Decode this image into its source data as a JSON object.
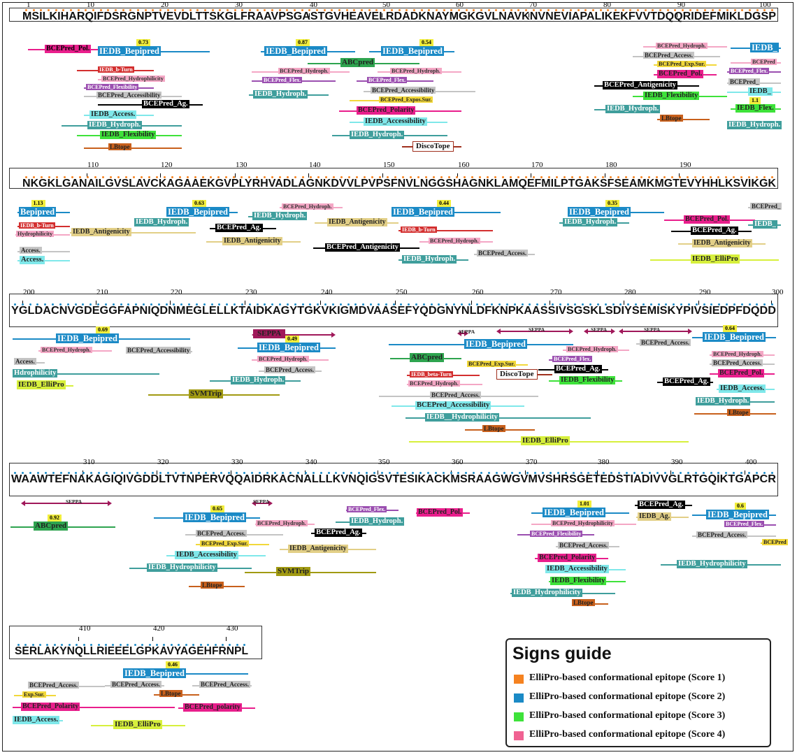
{
  "colors": {
    "score1": "#f58220",
    "score2": "#1b8ac6",
    "score3": "#3ee23a",
    "score4": "#f06292",
    "tool_bepipred": "#1b8ac6",
    "tool_magenta": "#e91e8c",
    "tool_teal": "#3f9e9c",
    "tool_cyan": "#7fe8ea",
    "tool_purple": "#9b4fb0",
    "tool_pink": "#f4a7c5",
    "tool_green": "#2ea44f",
    "tool_lime": "#d7f03c",
    "tool_orange": "#c8601c",
    "tool_yellow": "#f2d83a",
    "tool_black": "#000000",
    "tool_gray": "#c4c4c4",
    "tool_olive": "#a19a12",
    "tool_red": "#d32f2f",
    "tool_sand": "#e2cf87",
    "tool_seppa": "#a0185a"
  },
  "rows": [
    {
      "sequence": "MSILKIHARQIFDSRGNPTVEVDLTTSKGLFRAAVPSGASTGVHEAVELRDADKNAYMGKGVLNAVKNVNEVIAPALIKEKFVVTDQQRIDEFMIKLDGSP",
      "ticks": [
        "1",
        "10",
        "20",
        "30",
        "40",
        "50",
        "60",
        "70",
        "80",
        "90",
        "100"
      ],
      "dot_color": "#f58220",
      "annotations": [
        {
          "text": "BCEPred_Pol.",
          "tool": "magenta",
          "fg": "#000"
        },
        {
          "text": "IEDB_Bepipred",
          "tool": "bepipred",
          "fg": "#fff",
          "score": "0.73"
        },
        {
          "text": "IEDB_b-Turn",
          "tool": "red",
          "fg": "#fff"
        },
        {
          "text": "BCEPred_Hydrophilicity",
          "tool": "pink",
          "fg": "#333"
        },
        {
          "text": "BCEPred_Flexibility",
          "tool": "purple",
          "fg": "#fff"
        },
        {
          "text": "BCEPred_Accessibility",
          "tool": "gray",
          "fg": "#222"
        },
        {
          "text": "BCEPred_Ag.",
          "tool": "black",
          "fg": "#fff"
        },
        {
          "text": "IEDB_Access.",
          "tool": "cyan",
          "fg": "#222"
        },
        {
          "text": "IEDB_Hydroph.",
          "tool": "teal",
          "fg": "#fff"
        },
        {
          "text": "IEDB_Flexibility",
          "tool": "green3",
          "fg": "#222"
        },
        {
          "text": "LBtope",
          "tool": "orange",
          "fg": "#222"
        },
        {
          "text": "IEDB_Bepipred",
          "tool": "bepipred",
          "fg": "#fff",
          "score": "0.87"
        },
        {
          "text": "BCEPred_Hydroph.",
          "tool": "pink",
          "fg": "#333"
        },
        {
          "text": "BCEPred_Flex.",
          "tool": "purple",
          "fg": "#fff"
        },
        {
          "text": "IEDB_Hydroph.",
          "tool": "teal",
          "fg": "#fff"
        },
        {
          "text": "ABCpred",
          "tool": "green",
          "fg": "#222"
        },
        {
          "text": "IEDB_Bepipred",
          "tool": "bepipred",
          "fg": "#fff",
          "score": "0.54"
        },
        {
          "text": "BCEPred_Hydroph.",
          "tool": "pink",
          "fg": "#333"
        },
        {
          "text": "BCEPred_Flex.",
          "tool": "purple",
          "fg": "#fff"
        },
        {
          "text": "BCEPred_Accessibility",
          "tool": "gray",
          "fg": "#222"
        },
        {
          "text": "BCEPred_Expos.Sur.",
          "tool": "yellow",
          "fg": "#222"
        },
        {
          "text": "BCEPred_Polarity",
          "tool": "magenta",
          "fg": "#222"
        },
        {
          "text": "IEDB_Accessibility",
          "tool": "cyan",
          "fg": "#222"
        },
        {
          "text": "IEDB_Hydroph.",
          "tool": "teal",
          "fg": "#fff"
        },
        {
          "text": "DiscoTope",
          "tool": "disco",
          "fg": "#111"
        },
        {
          "text": "BCEPred_Hydroph.",
          "tool": "pink",
          "fg": "#333"
        },
        {
          "text": "BCEPred_Access.",
          "tool": "gray",
          "fg": "#222"
        },
        {
          "text": "BCEPred_Exp.Sur.",
          "tool": "yellow",
          "fg": "#222"
        },
        {
          "text": "BCEPred_Pol.",
          "tool": "magenta",
          "fg": "#222"
        },
        {
          "text": "BCEPred_Antigenicity",
          "tool": "black",
          "fg": "#fff"
        },
        {
          "text": "IEDB_Flexibility",
          "tool": "green3",
          "fg": "#222"
        },
        {
          "text": "IEDB_Hydroph.",
          "tool": "teal",
          "fg": "#fff"
        },
        {
          "text": "LBtope",
          "tool": "orange",
          "fg": "#222"
        },
        {
          "text": "IEDB_",
          "tool": "bepipred",
          "fg": "#fff"
        },
        {
          "text": "BCEPred",
          "tool": "pink",
          "fg": "#333"
        },
        {
          "text": "BCEPred_Flex.",
          "tool": "purple",
          "fg": "#fff"
        },
        {
          "text": "BCEPred_",
          "tool": "gray",
          "fg": "#222"
        },
        {
          "text": "IEDB_",
          "tool": "cyan",
          "fg": "#222"
        },
        {
          "text": "IEDB_Flex.",
          "tool": "green3",
          "fg": "#222",
          "score": "1.1"
        },
        {
          "text": "IEDB_Hydroph.",
          "tool": "teal",
          "fg": "#fff"
        }
      ]
    },
    {
      "sequence": "NKGKLGANAILGVSLAVCKAGAAEKGVPLYRHVADLAGNKDVVLPVPSFNVLNGGSHAGNKLAMQEFMILPTGAKSFSEAMKMGTEVYHHLKSVIKGK",
      "ticks": [
        "110",
        "120",
        "130",
        "140",
        "150",
        "160",
        "170",
        "180",
        "190"
      ],
      "dot_color": "#f58220",
      "annotations": [
        {
          "text": "Bepipred",
          "tool": "bepipred",
          "fg": "#fff",
          "score": "1.13"
        },
        {
          "text": "IEDB_b-Turn",
          "tool": "red",
          "fg": "#fff"
        },
        {
          "text": "Hydrophilicity",
          "tool": "pink",
          "fg": "#333"
        },
        {
          "text": "Access.",
          "tool": "gray",
          "fg": "#222"
        },
        {
          "text": "Access.",
          "tool": "cyan",
          "fg": "#222"
        },
        {
          "text": "IEDB_Antigenicity",
          "tool": "sand",
          "fg": "#222"
        },
        {
          "text": "IEDB_Hydroph.",
          "tool": "teal",
          "fg": "#fff"
        },
        {
          "text": "IEDB_Bepipred",
          "tool": "bepipred",
          "fg": "#fff",
          "score": "0.63"
        },
        {
          "text": "BCEPred_Ag.",
          "tool": "black",
          "fg": "#fff"
        },
        {
          "text": "IEDB_Antigenicity",
          "tool": "sand",
          "fg": "#222"
        },
        {
          "text": "IEDB_Hydroph.",
          "tool": "teal",
          "fg": "#fff"
        },
        {
          "text": "BCEPred_Hydroph.",
          "tool": "pink",
          "fg": "#333"
        },
        {
          "text": "IEDB_Antigenicity",
          "tool": "sand",
          "fg": "#222"
        },
        {
          "text": "BCEPred_Antigenicity",
          "tool": "black",
          "fg": "#fff"
        },
        {
          "text": "IEDB_Bepipred",
          "tool": "bepipred",
          "fg": "#fff",
          "score": "0.44"
        },
        {
          "text": "IEDB_b-Turn",
          "tool": "red",
          "fg": "#fff"
        },
        {
          "text": "BCEPred_Hydroph.",
          "tool": "pink",
          "fg": "#333"
        },
        {
          "text": "IEDB_Hydroph.",
          "tool": "teal",
          "fg": "#fff"
        },
        {
          "text": "BCEPred_Access.",
          "tool": "gray",
          "fg": "#222"
        },
        {
          "text": "IEDB_Bepipred",
          "tool": "bepipred",
          "fg": "#fff",
          "score": "0.35"
        },
        {
          "text": "IEDB_Hydroph.",
          "tool": "teal",
          "fg": "#fff"
        },
        {
          "text": "BCEPred_Pol.",
          "tool": "magenta",
          "fg": "#222"
        },
        {
          "text": "BCEPred_Ag.",
          "tool": "black",
          "fg": "#fff"
        },
        {
          "text": "IEDB_Antigenicity",
          "tool": "sand",
          "fg": "#222"
        },
        {
          "text": "IEDB_ElliPro",
          "tool": "lime",
          "fg": "#222"
        },
        {
          "text": "BCEPred_",
          "tool": "gray",
          "fg": "#222"
        },
        {
          "text": "IEDB_",
          "tool": "teal",
          "fg": "#fff"
        }
      ]
    },
    {
      "sequence": "YGLDACNVGDEGGFAPNIQDNMEGLELLKTAIDKAGYTGKVKIGMDVAASEFYQDGNYNLDFKNPKAASSIVSGSKLSDIYSEMISKYPIVSIEDPFDQDD",
      "ticks": [
        "200",
        "210",
        "220",
        "230",
        "240",
        "250",
        "260",
        "270",
        "280",
        "290",
        "300"
      ],
      "dot_color": "#1b8ac6",
      "annotations": [
        {
          "text": "IEDB_Bepipred",
          "tool": "bepipred",
          "fg": "#fff",
          "score": "0.69"
        },
        {
          "text": "BCEPred_Hydroph.",
          "tool": "pink",
          "fg": "#333"
        },
        {
          "text": "BCEPred_Accessibility",
          "tool": "gray",
          "fg": "#222"
        },
        {
          "text": "Access.",
          "tool": "gray",
          "fg": "#222"
        },
        {
          "text": "Hdrophilicity",
          "tool": "teal",
          "fg": "#fff"
        },
        {
          "text": "IEDB_ElliPro",
          "tool": "lime",
          "fg": "#222"
        },
        {
          "text": "SEPPA",
          "tool": "seppa",
          "fg": "#222"
        },
        {
          "text": "IEDB_Bepipred",
          "tool": "bepipred",
          "fg": "#fff",
          "score": "0.49"
        },
        {
          "text": "BCEPred_Hydroph.",
          "tool": "pink",
          "fg": "#333"
        },
        {
          "text": "BCEPred_Access.",
          "tool": "gray",
          "fg": "#222"
        },
        {
          "text": "IEDB_Hydroph.",
          "tool": "teal",
          "fg": "#fff"
        },
        {
          "text": "SVMTrip",
          "tool": "olive",
          "fg": "#222"
        },
        {
          "text": "SEPPA",
          "tool": "seppa_small",
          "fg": "#222"
        },
        {
          "text": "IEDB_Bepipred",
          "tool": "bepipred",
          "fg": "#fff"
        },
        {
          "text": "ABCpred",
          "tool": "green",
          "fg": "#222"
        },
        {
          "text": "BCEPred_Exp.Sur.",
          "tool": "yellow",
          "fg": "#222"
        },
        {
          "text": "IEDB_beta-Turn",
          "tool": "red",
          "fg": "#fff"
        },
        {
          "text": "DiscoTope",
          "tool": "disco",
          "fg": "#111"
        },
        {
          "text": "BCEPred_Hydroph.",
          "tool": "pink",
          "fg": "#333"
        },
        {
          "text": "BCEPred_Access.",
          "tool": "gray",
          "fg": "#222"
        },
        {
          "text": "BCEPred_Accessibility",
          "tool": "cyan",
          "fg": "#222"
        },
        {
          "text": "IEDB__Hydrophilicity",
          "tool": "teal",
          "fg": "#fff"
        },
        {
          "text": "LBtope",
          "tool": "orange",
          "fg": "#222"
        },
        {
          "text": "IEDB_ElliPro",
          "tool": "lime",
          "fg": "#222"
        },
        {
          "text": "SEPPA",
          "tool": "seppa_small",
          "fg": "#222"
        },
        {
          "text": "SEPPA",
          "tool": "seppa_small",
          "fg": "#222"
        },
        {
          "text": "SEPPA",
          "tool": "seppa_small",
          "fg": "#222"
        },
        {
          "text": "BCEPred_Hydroph.",
          "tool": "pink",
          "fg": "#333"
        },
        {
          "text": "BCEPred_Flex.",
          "tool": "purple",
          "fg": "#fff"
        },
        {
          "text": "BCEPred_Ag.",
          "tool": "black",
          "fg": "#fff"
        },
        {
          "text": "IEDB_Flexibility",
          "tool": "green3",
          "fg": "#222"
        },
        {
          "text": "BCEPred_Access.",
          "tool": "gray",
          "fg": "#222"
        },
        {
          "text": "IEDB_Bepipred",
          "tool": "bepipred",
          "fg": "#fff",
          "score": "0.64"
        },
        {
          "text": "BCEPred_Hydroph.",
          "tool": "pink",
          "fg": "#333"
        },
        {
          "text": "BCEPred_Access.",
          "tool": "gray",
          "fg": "#222"
        },
        {
          "text": "BCEPred_Pol.",
          "tool": "magenta",
          "fg": "#222"
        },
        {
          "text": "BCEPred_Ag.",
          "tool": "black",
          "fg": "#fff"
        },
        {
          "text": "IEDB_Access.",
          "tool": "cyan",
          "fg": "#222"
        },
        {
          "text": "IEDB_Hydroph.",
          "tool": "teal",
          "fg": "#fff"
        },
        {
          "text": "LBtope",
          "tool": "orange",
          "fg": "#222"
        }
      ]
    },
    {
      "sequence": "WAAWTEFNAKAGIQIVGDDLTVTNPERVQQAIDRKACNALLLKVNQIGSVTESIKACKMSRAAGWGVMVSHRSGETEDSTIADIVVGLRTGQIKTGAPCR",
      "ticks": [
        "310",
        "320",
        "330",
        "340",
        "350",
        "360",
        "370",
        "380",
        "390",
        "400"
      ],
      "dot_color": "#1b8ac6",
      "annotations": [
        {
          "text": "SEPPA",
          "tool": "seppa_small",
          "fg": "#222"
        },
        {
          "text": "ABCpred",
          "tool": "green",
          "fg": "#222",
          "score": "0.92"
        },
        {
          "text": "IEDB_Bepipred",
          "tool": "bepipred",
          "fg": "#fff",
          "score": "0.65"
        },
        {
          "text": "SEPPA",
          "tool": "seppa_small",
          "fg": "#222"
        },
        {
          "text": "BCEPred_Hydroph.",
          "tool": "pink",
          "fg": "#333"
        },
        {
          "text": "BCEPred_Access.",
          "tool": "gray",
          "fg": "#222"
        },
        {
          "text": "BCEPred_Exp.Sur.",
          "tool": "yellow",
          "fg": "#222"
        },
        {
          "text": "IEDB_Accessibility",
          "tool": "cyan",
          "fg": "#222"
        },
        {
          "text": "IEDB_Hydrophilicity",
          "tool": "teal",
          "fg": "#fff"
        },
        {
          "text": "LBtope",
          "tool": "orange",
          "fg": "#222"
        },
        {
          "text": "BCEPred_Ag.",
          "tool": "black",
          "fg": "#fff"
        },
        {
          "text": "IEDB_Antigenicity",
          "tool": "sand",
          "fg": "#222"
        },
        {
          "text": "SVMTrip",
          "tool": "olive",
          "fg": "#222"
        },
        {
          "text": "BCEPred_Flex.",
          "tool": "purple",
          "fg": "#fff"
        },
        {
          "text": "IEDB_Hydroph.",
          "tool": "teal",
          "fg": "#fff"
        },
        {
          "text": "BCEPred_Pol.",
          "tool": "magenta",
          "fg": "#222"
        },
        {
          "text": "IEDB_Bepipred",
          "tool": "bepipred",
          "fg": "#fff",
          "score": "1.01"
        },
        {
          "text": "BCEPred_Hydrophilicity",
          "tool": "pink",
          "fg": "#333"
        },
        {
          "text": "BCEPred_Flexibility",
          "tool": "purple",
          "fg": "#fff"
        },
        {
          "text": "BCEPred_Access.",
          "tool": "gray",
          "fg": "#222"
        },
        {
          "text": "BCEPred_Polarity",
          "tool": "magenta",
          "fg": "#222"
        },
        {
          "text": "IEDB_Accessibility",
          "tool": "cyan",
          "fg": "#222"
        },
        {
          "text": "IEDB_Flexibility",
          "tool": "green3",
          "fg": "#222"
        },
        {
          "text": "IEDB_Hydrophilicity",
          "tool": "teal",
          "fg": "#fff"
        },
        {
          "text": "LBtope",
          "tool": "orange",
          "fg": "#222"
        },
        {
          "text": "BCEPred_Ag.",
          "tool": "black",
          "fg": "#fff"
        },
        {
          "text": "IEDB_Ag.",
          "tool": "sand",
          "fg": "#222"
        },
        {
          "text": "IEDB_Bepipred",
          "tool": "bepipred",
          "fg": "#fff",
          "score": "0.6"
        },
        {
          "text": "BCEPred_Flex.",
          "tool": "purple",
          "fg": "#fff"
        },
        {
          "text": "BCEPred_Access.",
          "tool": "gray",
          "fg": "#222"
        },
        {
          "text": "BCEPred",
          "tool": "yellow",
          "fg": "#222"
        },
        {
          "text": "IEDB_Hydrophilicity",
          "tool": "teal",
          "fg": "#fff"
        }
      ]
    },
    {
      "sequence": "SERLAKYNQLLRIEEELGPKAVYAGEHFRNPL",
      "ticks": [
        "410",
        "420",
        "430"
      ],
      "dot_color": "#1b8ac6",
      "annotations": [
        {
          "text": "IEDB_Bepipred",
          "tool": "bepipred",
          "fg": "#fff",
          "score": "0.46"
        },
        {
          "text": "BCEPred_Access.",
          "tool": "gray",
          "fg": "#222"
        },
        {
          "text": "BCEPred_Access.",
          "tool": "gray",
          "fg": "#222"
        },
        {
          "text": "BCEPred_Access.",
          "tool": "gray",
          "fg": "#222"
        },
        {
          "text": "Exp.Sur.",
          "tool": "yellow",
          "fg": "#222"
        },
        {
          "text": "LBtope",
          "tool": "orange",
          "fg": "#222"
        },
        {
          "text": "BCEPred_Polarity",
          "tool": "magenta",
          "fg": "#222"
        },
        {
          "text": "BCEPred_polarity",
          "tool": "magenta",
          "fg": "#222"
        },
        {
          "text": "IEDB_Access.",
          "tool": "cyan",
          "fg": "#222"
        },
        {
          "text": "IEDB_ElliPro",
          "tool": "lime",
          "fg": "#222"
        }
      ]
    }
  ],
  "legend": {
    "title": "Signs guide",
    "items": [
      {
        "label": "ElliPro-based conformational epitope (Score 1)",
        "color": "#f58220"
      },
      {
        "label": "ElliPro-based conformational epitope (Score 2)",
        "color": "#1b8ac6"
      },
      {
        "label": "ElliPro-based conformational epitope (Score 3)",
        "color": "#3ee23a"
      },
      {
        "label": "ElliPro-based conformational epitope (Score 4)",
        "color": "#f06292"
      }
    ]
  }
}
